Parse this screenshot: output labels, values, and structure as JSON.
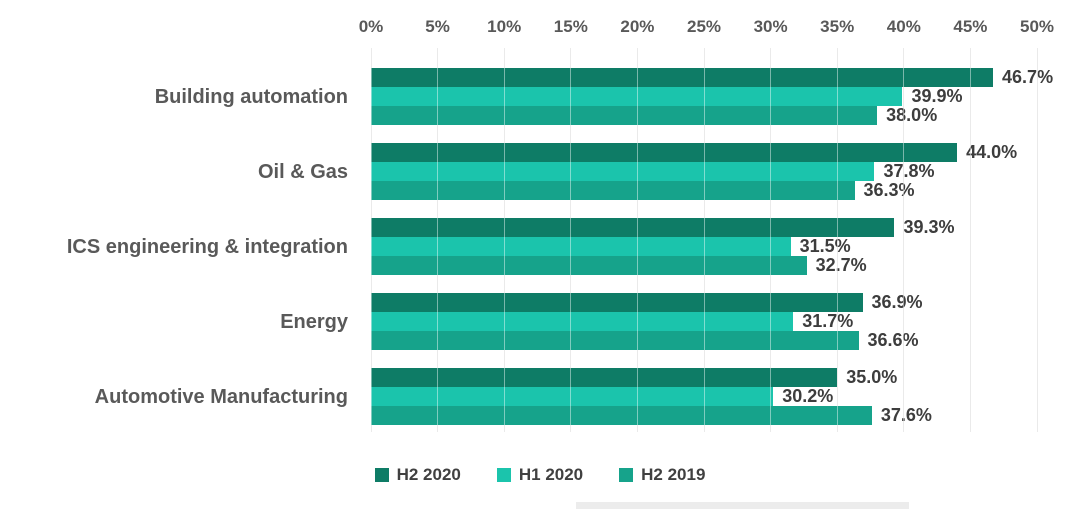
{
  "chart_data": {
    "type": "bar",
    "orientation": "horizontal",
    "title": "",
    "x_axis": {
      "position": "top",
      "ticks": [
        "0%",
        "5%",
        "10%",
        "15%",
        "20%",
        "25%",
        "30%",
        "35%",
        "40%",
        "45%",
        "50%"
      ],
      "min": 0,
      "max": 50,
      "grid": true
    },
    "categories": [
      "Building automation",
      "Oil & Gas",
      "ICS engineering & integration",
      "Energy",
      "Automotive Manufacturing"
    ],
    "series": [
      {
        "name": "H2 2020",
        "color": "#0E7C66",
        "values": [
          46.7,
          44.0,
          39.3,
          36.9,
          35.0
        ],
        "labels": [
          "46.7%",
          "44.0%",
          "39.3%",
          "36.9%",
          "35.0%"
        ]
      },
      {
        "name": "H1 2020",
        "color": "#1BC4AC",
        "values": [
          39.9,
          37.8,
          31.5,
          31.7,
          30.2
        ],
        "labels": [
          "39.9%",
          "37.8%",
          "31.5%",
          "31.7%",
          "30.2%"
        ]
      },
      {
        "name": "H2 2019",
        "color": "#16A38B",
        "values": [
          38.0,
          36.3,
          32.7,
          36.6,
          37.6
        ],
        "labels": [
          "38.0%",
          "36.3%",
          "32.7%",
          "36.6%",
          "37.6%"
        ]
      }
    ],
    "legend": {
      "position": "bottom",
      "entries": [
        "H2 2020",
        "H1 2020",
        "H2 2019"
      ]
    }
  },
  "colors": {
    "grid": "#d9d9d9",
    "axis_text": "#595959",
    "category_text": "#595959",
    "data_label_text": "#3d3d3d",
    "legend_text": "#404040",
    "background": "#ffffff"
  }
}
